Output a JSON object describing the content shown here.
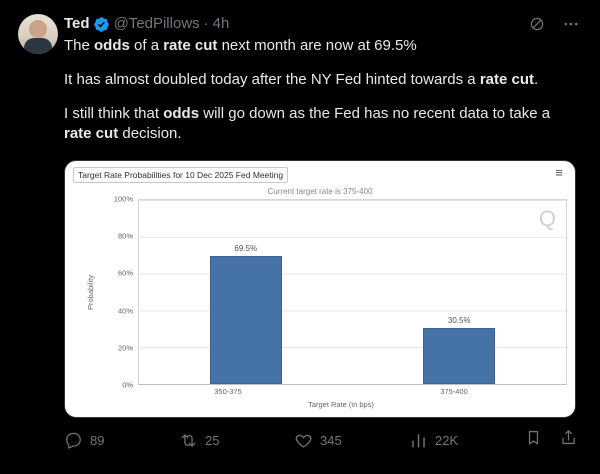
{
  "colors": {
    "accent": "#1d9bf0",
    "bar": "#4572a7",
    "background": "#000000",
    "muted": "#71767b"
  },
  "header": {
    "name": "Ted",
    "handle": "@TedPillows",
    "sep": "·",
    "time": "4h"
  },
  "tweet": {
    "p1": [
      {
        "t": "The "
      },
      {
        "t": "odds",
        "b": true
      },
      {
        "t": " of a "
      },
      {
        "t": "rate cut",
        "b": true
      },
      {
        "t": " next month are now at 69.5%"
      }
    ],
    "p2": [
      {
        "t": "It has almost doubled today after the NY Fed hinted towards a "
      },
      {
        "t": "rate cut",
        "b": true
      },
      {
        "t": "."
      }
    ],
    "p3": [
      {
        "t": "I still think that "
      },
      {
        "t": "odds",
        "b": true
      },
      {
        "t": " will go down as the Fed has no recent data to take a "
      },
      {
        "t": "rate cut",
        "b": true
      },
      {
        "t": " decision."
      }
    ]
  },
  "chart_data": {
    "type": "bar",
    "title": "Target Rate Probabilities for 10 Dec 2025 Fed Meeting",
    "subtitle": "Current target rate is 375-400",
    "categories": [
      "350-375",
      "375-400"
    ],
    "values": [
      69.5,
      30.5
    ],
    "value_labels": [
      "69.5%",
      "30.5%"
    ],
    "xlabel": "Target Rate (in bps)",
    "ylabel": "Probability",
    "ylim": [
      0,
      100
    ],
    "yticks": [
      "100%",
      "80%",
      "60%",
      "40%",
      "20%",
      "0%"
    ],
    "grid": true,
    "legend": "none",
    "bar_color": "#4572a7",
    "watermark": "Q",
    "menu_icon": "≡"
  },
  "actions": {
    "reply": "89",
    "repost": "25",
    "like": "345",
    "views": "22K"
  }
}
